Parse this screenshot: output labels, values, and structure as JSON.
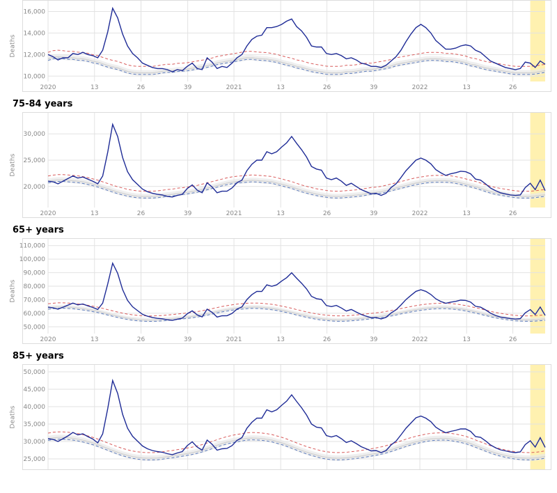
{
  "global": {
    "ylabel": "Deaths",
    "x_ticks": [
      "2020",
      "13",
      "26",
      "39",
      "2021",
      "13",
      "26",
      "39",
      "2022",
      "13",
      "26"
    ],
    "x_positions": [
      0,
      0.0935,
      0.187,
      0.281,
      0.374,
      0.468,
      0.561,
      0.655,
      0.748,
      0.842,
      0.935
    ],
    "line_color": "#1e2b96",
    "line_width": 1.4,
    "red_dash_color": "#d85b5b",
    "blue_dash_color": "#5b7bbd",
    "baseline_solid_color": "#d0d0d0",
    "band_fill": "#e8e8e8",
    "grid_color": "#e2e2e2",
    "axis_tick_color": "#888888",
    "tick_font_size": 9,
    "title_font_size": 13,
    "background": "#ffffff",
    "recent_band_color": "#fff1b0",
    "recent_band_start": 0.97,
    "dash_pattern": "4,3"
  },
  "panels": [
    {
      "title": "",
      "height": 130,
      "type": "line",
      "ymin": 9500,
      "ymax": 17000,
      "yticks": [
        10000,
        12000,
        14000,
        16000
      ],
      "ytick_labels": [
        "10,000",
        "12,000",
        "14,000",
        "16,000"
      ],
      "baseline": [
        11600,
        11800,
        11800,
        11700,
        11700,
        11600,
        11600,
        11400,
        11300,
        11100,
        10900,
        10800,
        10600,
        10400,
        10300,
        10300,
        10300,
        10300,
        10400,
        10500,
        10500,
        10600,
        10600,
        10700,
        10800,
        10900,
        11000,
        11200,
        11300,
        11400,
        11500,
        11600,
        11700,
        11700,
        11600,
        11600,
        11500,
        11400,
        11200,
        11100,
        10900,
        10800,
        10600,
        10500,
        10400,
        10300,
        10300,
        10300,
        10400,
        10400,
        10500,
        10600,
        10600,
        10700,
        10800,
        10900,
        11100,
        11200,
        11300,
        11400,
        11500,
        11600,
        11600,
        11600,
        11500,
        11500,
        11400,
        11300,
        11100,
        11000,
        10800,
        10700,
        10600,
        10500,
        10400,
        10300,
        10300,
        10300,
        10300,
        10400,
        10500
      ],
      "red_offset": 600,
      "blue_offset": -150,
      "band_offset": 250,
      "data": [
        12000,
        11800,
        11500,
        11700,
        11700,
        12100,
        12000,
        12200,
        12000,
        11900,
        11700,
        12400,
        14100,
        16300,
        15400,
        13900,
        12800,
        12100,
        11700,
        11200,
        11000,
        10800,
        10700,
        10700,
        10600,
        10400,
        10600,
        10500,
        10900,
        11200,
        10700,
        10600,
        11700,
        11300,
        10700,
        10900,
        10800,
        11200,
        11700,
        12000,
        12800,
        13400,
        13700,
        13800,
        14500,
        14500,
        14600,
        14800,
        15100,
        15300,
        14600,
        14200,
        13600,
        12800,
        12700,
        12700,
        12100,
        12000,
        12100,
        11900,
        11600,
        11700,
        11500,
        11200,
        11100,
        10900,
        10900,
        10800,
        11000,
        11400,
        11800,
        12400,
        13200,
        13900,
        14500,
        14800,
        14500,
        14000,
        13300,
        12900,
        12500,
        12500,
        12600,
        12800,
        12900,
        12800,
        12400,
        12200,
        11800,
        11400,
        11200,
        11000,
        10800,
        10700,
        10600,
        10700,
        11300,
        11200,
        10800,
        11400,
        11100
      ]
    },
    {
      "title": "75-84 years",
      "height": 150,
      "type": "line",
      "ymin": 16000,
      "ymax": 34000,
      "yticks": [
        20000,
        25000,
        30000
      ],
      "ytick_labels": [
        "20,000",
        "25,000",
        "30,000"
      ],
      "baseline": [
        21000,
        21200,
        21300,
        21200,
        21100,
        21000,
        20800,
        20500,
        20200,
        19800,
        19400,
        19000,
        18700,
        18400,
        18200,
        18100,
        18100,
        18100,
        18200,
        18400,
        18500,
        18700,
        18800,
        19000,
        19200,
        19500,
        19800,
        20100,
        20400,
        20700,
        20900,
        21000,
        21100,
        21200,
        21100,
        21000,
        20900,
        20600,
        20300,
        20000,
        19600,
        19200,
        18900,
        18600,
        18400,
        18200,
        18100,
        18100,
        18200,
        18300,
        18400,
        18600,
        18800,
        18900,
        19100,
        19400,
        19700,
        20000,
        20300,
        20600,
        20800,
        21000,
        21100,
        21100,
        21100,
        21000,
        20800,
        20500,
        20200,
        19900,
        19500,
        19100,
        18800,
        18600,
        18400,
        18200,
        18100,
        18100,
        18100,
        18300,
        18400
      ],
      "red_offset": 1000,
      "blue_offset": -300,
      "band_offset": 500,
      "data": [
        21000,
        20900,
        20500,
        21000,
        21500,
        22000,
        21600,
        21800,
        21400,
        21000,
        20500,
        22000,
        26500,
        31800,
        29500,
        25500,
        22800,
        21300,
        20400,
        19500,
        19000,
        18700,
        18500,
        18400,
        18100,
        18000,
        18300,
        18500,
        19600,
        20300,
        19300,
        18800,
        20700,
        19900,
        18800,
        19100,
        19100,
        19700,
        20700,
        21200,
        23000,
        24200,
        25000,
        25000,
        26600,
        26200,
        26600,
        27500,
        28300,
        29500,
        28200,
        27000,
        25600,
        23800,
        23300,
        23100,
        21600,
        21300,
        21600,
        21000,
        20200,
        20600,
        20000,
        19400,
        19000,
        18600,
        18700,
        18300,
        18700,
        19800,
        20500,
        21700,
        23000,
        24000,
        25000,
        25400,
        25000,
        24300,
        23200,
        22600,
        22100,
        22400,
        22600,
        22900,
        22800,
        22400,
        21400,
        21200,
        20500,
        19700,
        19200,
        18800,
        18600,
        18400,
        18300,
        18400,
        19800,
        20600,
        19400,
        21200,
        19200
      ]
    },
    {
      "title": "65+ years",
      "height": 150,
      "type": "line",
      "ymin": 45000,
      "ymax": 115000,
      "yticks": [
        50000,
        60000,
        70000,
        80000,
        90000,
        100000,
        110000
      ],
      "ytick_labels": [
        "50,000",
        "60,000",
        "70,000",
        "80,000",
        "90,000",
        "100,000",
        "110,000"
      ],
      "baseline": [
        64000,
        64500,
        64800,
        64600,
        64300,
        63800,
        63200,
        62400,
        61500,
        60400,
        59200,
        58100,
        57100,
        56200,
        55600,
        55200,
        55000,
        55000,
        55200,
        55600,
        56000,
        56500,
        57000,
        57500,
        58200,
        59000,
        60000,
        61000,
        62000,
        62800,
        63500,
        64000,
        64400,
        64600,
        64500,
        64100,
        63600,
        62900,
        61900,
        60900,
        59700,
        58600,
        57600,
        56700,
        56000,
        55500,
        55100,
        55000,
        55200,
        55500,
        55900,
        56400,
        56900,
        57400,
        58000,
        58800,
        59700,
        60700,
        61600,
        62500,
        63200,
        63800,
        64200,
        64400,
        64400,
        64100,
        63600,
        62900,
        61900,
        60900,
        59800,
        58600,
        57600,
        56800,
        56100,
        55500,
        55200,
        55000,
        55100,
        55400,
        55800
      ],
      "red_offset": 3000,
      "blue_offset": -1000,
      "band_offset": 1500,
      "data": [
        64500,
        64000,
        63000,
        64500,
        66000,
        67500,
        66200,
        66800,
        65500,
        64300,
        62800,
        67500,
        81600,
        97000,
        89500,
        77500,
        69500,
        64800,
        62000,
        59200,
        57800,
        56900,
        56200,
        55900,
        55200,
        54800,
        55600,
        56300,
        59600,
        61800,
        58800,
        57300,
        63000,
        60700,
        57200,
        58100,
        58200,
        59900,
        63000,
        64700,
        70100,
        73700,
        76200,
        76100,
        81000,
        79900,
        81000,
        83800,
        86300,
        89900,
        85900,
        82200,
        78000,
        72500,
        70800,
        70200,
        65700,
        64900,
        65800,
        63900,
        61600,
        62800,
        60900,
        59100,
        57800,
        56700,
        56900,
        55800,
        57000,
        60200,
        62500,
        66100,
        70100,
        73200,
        76200,
        77400,
        76200,
        73900,
        70700,
        68700,
        67400,
        68200,
        68800,
        69700,
        69500,
        68200,
        65100,
        64500,
        62500,
        60100,
        58400,
        57200,
        56700,
        56100,
        55700,
        56000,
        60300,
        62700,
        59000,
        64600,
        58400
      ]
    },
    {
      "title": "85+ years",
      "height": 150,
      "type": "line",
      "ymin": 22000,
      "ymax": 52000,
      "yticks": [
        25000,
        30000,
        35000,
        40000,
        45000,
        50000
      ],
      "ytick_labels": [
        "25,000",
        "30,000",
        "35,000",
        "40,000",
        "45,000",
        "50,000"
      ],
      "baseline": [
        30800,
        31100,
        31200,
        31100,
        30900,
        30600,
        30200,
        29700,
        29100,
        28400,
        27700,
        27000,
        26400,
        25900,
        25500,
        25300,
        25200,
        25200,
        25300,
        25600,
        25800,
        26100,
        26400,
        26700,
        27100,
        27600,
        28200,
        28800,
        29400,
        29900,
        30300,
        30600,
        30900,
        31000,
        30900,
        30700,
        30400,
        29900,
        29400,
        28700,
        28000,
        27300,
        26700,
        26200,
        25700,
        25400,
        25200,
        25200,
        25300,
        25500,
        25700,
        26000,
        26300,
        26600,
        27000,
        27500,
        28100,
        28700,
        29300,
        29800,
        30200,
        30600,
        30800,
        30900,
        30900,
        30700,
        30400,
        30000,
        29400,
        28700,
        28000,
        27300,
        26700,
        26200,
        25800,
        25500,
        25300,
        25200,
        25200,
        25400,
        25700
      ],
      "red_offset": 1600,
      "blue_offset": -500,
      "band_offset": 800,
      "data": [
        30800,
        30600,
        30000,
        30800,
        31600,
        32600,
        31900,
        32200,
        31400,
        30700,
        29600,
        32200,
        39400,
        47500,
        43800,
        37800,
        33800,
        31500,
        30100,
        28700,
        27900,
        27400,
        27100,
        26900,
        26500,
        26200,
        26700,
        27100,
        28800,
        29900,
        28400,
        27500,
        30400,
        29200,
        27500,
        27900,
        28000,
        28800,
        30300,
        31100,
        33800,
        35500,
        36700,
        36700,
        39100,
        38500,
        39100,
        40400,
        41600,
        43400,
        41500,
        39700,
        37600,
        35000,
        34100,
        33900,
        31700,
        31300,
        31700,
        30800,
        29700,
        30200,
        29400,
        28500,
        27900,
        27300,
        27400,
        26800,
        27400,
        29000,
        30100,
        31900,
        33800,
        35300,
        36800,
        37300,
        36700,
        35700,
        34100,
        33200,
        32500,
        32900,
        33200,
        33600,
        33600,
        32900,
        31400,
        31200,
        30200,
        29000,
        28200,
        27600,
        27300,
        27000,
        26800,
        27000,
        29100,
        30200,
        28400,
        31100,
        28300
      ]
    }
  ]
}
